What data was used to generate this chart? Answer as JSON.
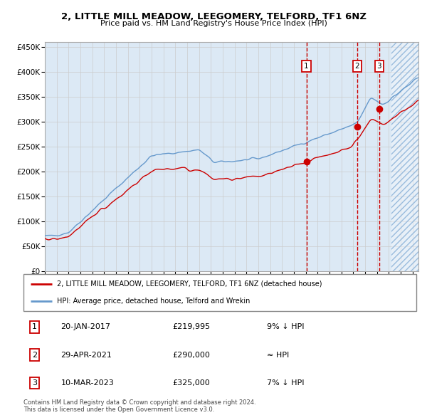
{
  "title": "2, LITTLE MILL MEADOW, LEEGOMERY, TELFORD, TF1 6NZ",
  "subtitle": "Price paid vs. HM Land Registry's House Price Index (HPI)",
  "legend_line1": "2, LITTLE MILL MEADOW, LEEGOMERY, TELFORD, TF1 6NZ (detached house)",
  "legend_line2": "HPI: Average price, detached house, Telford and Wrekin",
  "footer1": "Contains HM Land Registry data © Crown copyright and database right 2024.",
  "footer2": "This data is licensed under the Open Government Licence v3.0.",
  "transactions": [
    {
      "num": 1,
      "date": "20-JAN-2017",
      "price": 219995,
      "rel": "9% ↓ HPI"
    },
    {
      "num": 2,
      "date": "29-APR-2021",
      "price": 290000,
      "rel": "≈ HPI"
    },
    {
      "num": 3,
      "date": "10-MAR-2023",
      "price": 325000,
      "rel": "7% ↓ HPI"
    }
  ],
  "transaction_dates_decimal": [
    2017.054,
    2021.326,
    2023.189
  ],
  "transaction_prices": [
    219995,
    290000,
    325000
  ],
  "hpi_color": "#6699cc",
  "price_color": "#cc0000",
  "background_color": "#dce9f5",
  "grid_color": "#cccccc",
  "vline_color": "#cc0000",
  "ylim": [
    0,
    460000
  ],
  "xlim_start": 1995.0,
  "xlim_end": 2026.5,
  "future_start": 2024.25
}
